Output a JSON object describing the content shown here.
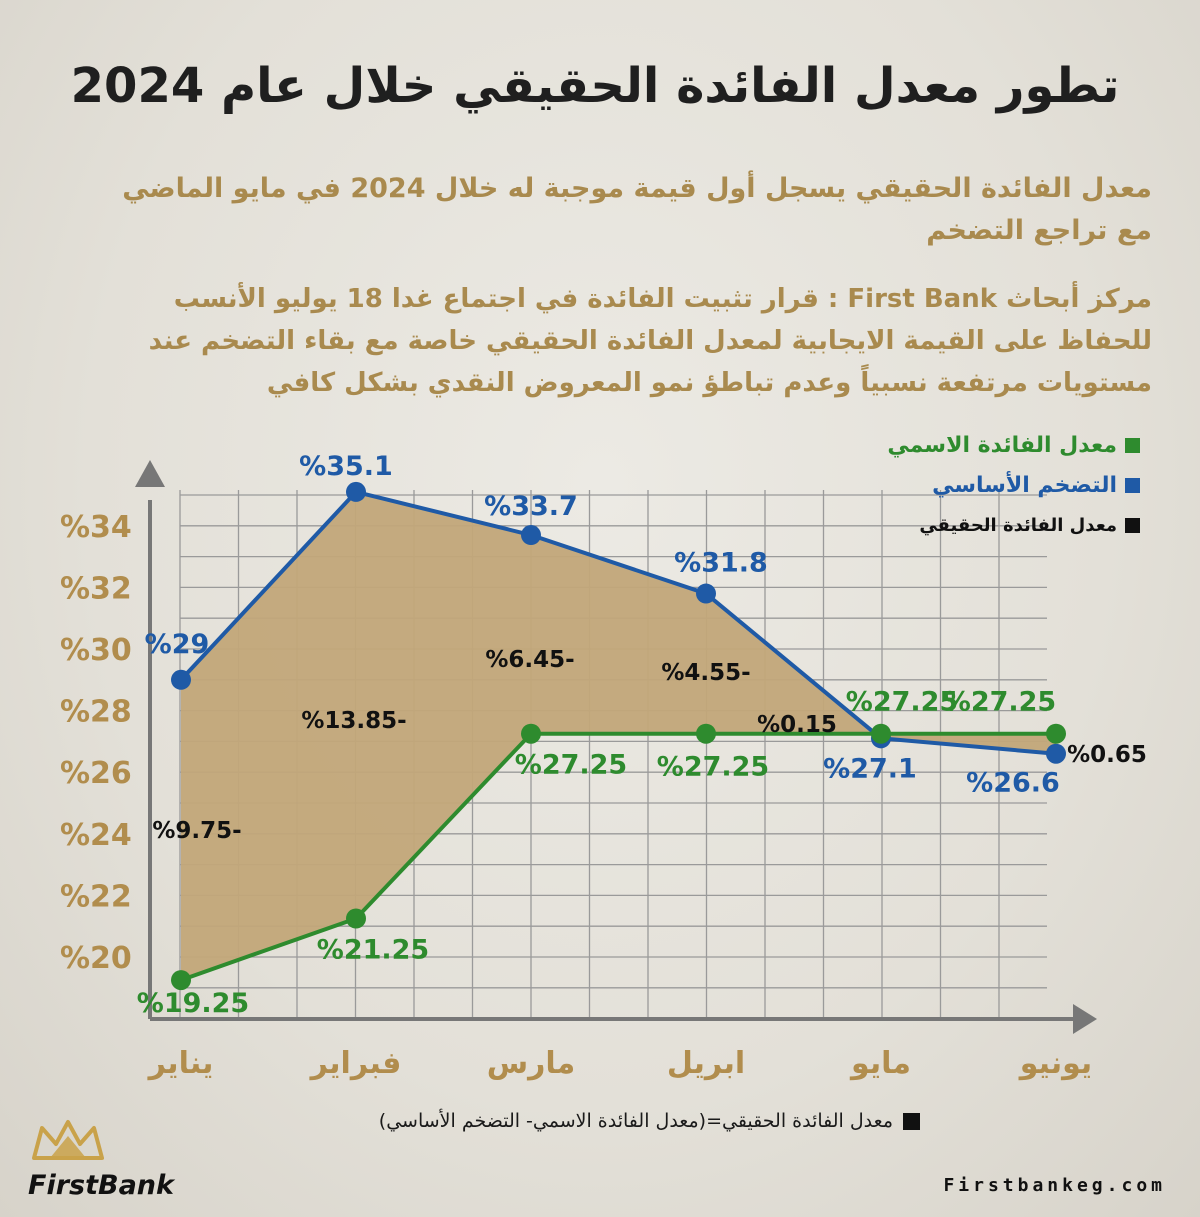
{
  "title": "تطور معدل الفائدة الحقيقي خلال عام 2024",
  "subtitle": "معدل الفائدة الحقيقي يسجل أول قيمة موجبة له خلال 2024 في مايو الماضي مع تراجع التضخم",
  "note": "مركز أبحاث First Bank : قرار تثبيت الفائدة في اجتماع غدا 18 يوليو الأنسب للحفاظ على القيمة الايجابية لمعدل الفائدة الحقيقي خاصة مع بقاء التضخم عند مستويات مرتفعة نسبياً وعدم تباطؤ نمو المعروض النقدي بشكل كافي",
  "legend": {
    "nominal": "معدل الفائدة الاسمي",
    "inflation": "التضخم الأساسي",
    "real": "معدل الفائدة الحقيقي"
  },
  "formula": "معدل الفائدة الحقيقي=(معدل الفائدة الاسمي- التضخم الأساسي)",
  "logo_text": "FirstBank",
  "website": "Firstbankeg.com",
  "colors": {
    "nominal": "#2e8b2e",
    "inflation": "#1f5aa6",
    "area": "#c2a679",
    "axis_label": "#b18d4d",
    "grid": "#9a9a9a",
    "real": "#111111"
  },
  "chart_data": {
    "type": "line",
    "categories": [
      "يناير",
      "فبراير",
      "مارس",
      "ابريل",
      "مايو",
      "يونيو"
    ],
    "yticks": [
      "%20",
      "%22",
      "%24",
      "%26",
      "%28",
      "%30",
      "%32",
      "%34"
    ],
    "ylim": [
      18,
      36
    ],
    "series": [
      {
        "name": "التضخم الأساسي",
        "values": [
          29,
          35.1,
          33.7,
          31.8,
          27.1,
          26.6
        ],
        "labels": [
          "%29",
          "%35.1",
          "%33.7",
          "%31.8",
          "%27.1",
          "%26.6"
        ]
      },
      {
        "name": "معدل الفائدة الاسمي",
        "values": [
          19.25,
          21.25,
          27.25,
          27.25,
          27.25,
          27.25
        ],
        "labels": [
          "%19.25",
          "%21.25",
          "%27.25",
          "%27.25",
          "%27.25",
          "%27.25"
        ]
      }
    ],
    "real_rate": {
      "values": [
        -9.75,
        -13.85,
        -6.45,
        -4.55,
        0.15,
        0.65
      ],
      "labels": [
        "%9.75-",
        "%13.85-",
        "%6.45-",
        "%4.55-",
        "%0.15",
        "%0.65"
      ]
    }
  }
}
